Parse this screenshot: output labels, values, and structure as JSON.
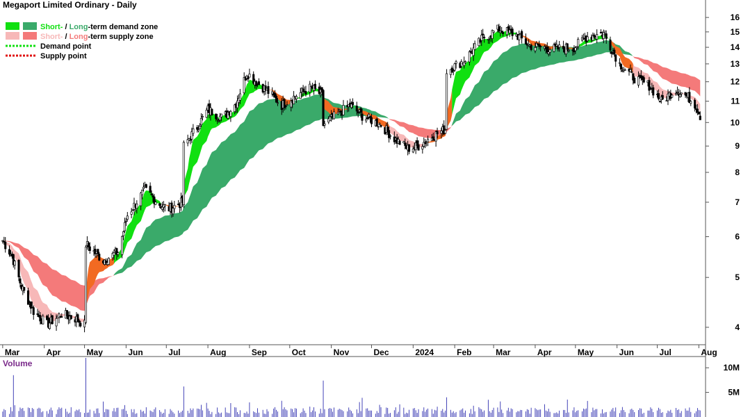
{
  "title": "Megaport Limited Ordinary - Daily",
  "legend": {
    "zone_short": "Short-",
    "zone_sep": " / ",
    "zone_long": "Long",
    "demand_rest": "-term demand zone",
    "supply_rest": "-term supply zone",
    "demand_point": "Demand point",
    "supply_point": "Supply point"
  },
  "colors": {
    "short_demand": "#11e011",
    "long_demand": "#3aaa6a",
    "short_supply": "#f7b8b8",
    "long_supply": "#f47a7a",
    "transition": "#f26a22",
    "candle": "#000000",
    "volume": "#3030b0",
    "volume_label": "#7a2a8a"
  },
  "chart_data": {
    "type": "candlestick",
    "title": "Megaport Limited Ordinary - Daily",
    "y_scale": "log",
    "ylim": [
      3.7,
      17.3
    ],
    "y_ticks": [
      4,
      5,
      6,
      7,
      8,
      9,
      10,
      11,
      12,
      13,
      14,
      15,
      16
    ],
    "x_ticks": [
      "Mar",
      "Apr",
      "May",
      "Jun",
      "Jul",
      "Aug",
      "Sep",
      "Oct",
      "Nov",
      "Dec",
      "2024",
      "Feb",
      "Mar",
      "Apr",
      "May",
      "Jun",
      "Jul",
      "Aug"
    ],
    "price_waypoints": [
      [
        "2023-03-01",
        5.9
      ],
      [
        "2023-03-08",
        5.5
      ],
      [
        "2023-03-15",
        4.8
      ],
      [
        "2023-03-24",
        4.3
      ],
      [
        "2023-04-03",
        4.05
      ],
      [
        "2023-04-14",
        4.25
      ],
      [
        "2023-04-25",
        4.15
      ],
      [
        "2023-05-01",
        4.05
      ],
      [
        "2023-05-02",
        5.8
      ],
      [
        "2023-05-15",
        5.4
      ],
      [
        "2023-05-26",
        5.6
      ],
      [
        "2023-06-02",
        6.6
      ],
      [
        "2023-06-15",
        7.4
      ],
      [
        "2023-06-27",
        6.9
      ],
      [
        "2023-07-03",
        6.8
      ],
      [
        "2023-07-13",
        7.0
      ],
      [
        "2023-07-14",
        9.0
      ],
      [
        "2023-07-24",
        9.8
      ],
      [
        "2023-08-01",
        10.6
      ],
      [
        "2023-08-12",
        10.2
      ],
      [
        "2023-08-22",
        10.9
      ],
      [
        "2023-08-30",
        12.5
      ],
      [
        "2023-09-06",
        12.0
      ],
      [
        "2023-09-13",
        11.6
      ],
      [
        "2023-09-25",
        10.8
      ],
      [
        "2023-10-06",
        11.3
      ],
      [
        "2023-10-17",
        11.7
      ],
      [
        "2023-10-25",
        11.3
      ],
      [
        "2023-10-26",
        9.9
      ],
      [
        "2023-11-06",
        10.4
      ],
      [
        "2023-11-15",
        10.8
      ],
      [
        "2023-11-24",
        10.3
      ],
      [
        "2023-12-08",
        9.9
      ],
      [
        "2023-12-18",
        9.3
      ],
      [
        "2023-12-28",
        8.9
      ],
      [
        "2024-01-05",
        9.0
      ],
      [
        "2024-01-15",
        9.4
      ],
      [
        "2024-01-25",
        9.7
      ],
      [
        "2024-01-26",
        12.6
      ],
      [
        "2024-02-08",
        13.2
      ],
      [
        "2024-02-22",
        14.6
      ],
      [
        "2024-03-05",
        15.2
      ],
      [
        "2024-03-18",
        14.8
      ],
      [
        "2024-03-28",
        14.1
      ],
      [
        "2024-04-15",
        13.9
      ],
      [
        "2024-04-30",
        14.0
      ],
      [
        "2024-05-10",
        14.7
      ],
      [
        "2024-05-22",
        14.9
      ],
      [
        "2024-06-03",
        13.0
      ],
      [
        "2024-06-14",
        12.2
      ],
      [
        "2024-06-25",
        11.8
      ],
      [
        "2024-07-04",
        11.0
      ],
      [
        "2024-07-15",
        11.6
      ],
      [
        "2024-07-24",
        11.2
      ],
      [
        "2024-07-30",
        10.8
      ],
      [
        "2024-08-02",
        10.3
      ]
    ],
    "volume_label": "Volume",
    "volume_ticks": [
      "5M",
      "10M"
    ],
    "volume_ylim": [
      0,
      12000000
    ],
    "volume_spikes": [
      [
        "2023-03-09",
        8500000
      ],
      [
        "2023-05-02",
        12000000
      ],
      [
        "2023-07-14",
        6200000
      ],
      [
        "2023-10-26",
        7400000
      ],
      [
        "2024-01-26",
        4000000
      ],
      [
        "2024-02-26",
        3500000
      ]
    ],
    "zones": [
      {
        "name": "Short-term demand zone",
        "kind": "short_demand"
      },
      {
        "name": "Long-term demand zone",
        "kind": "long_demand"
      },
      {
        "name": "Short-term supply zone",
        "kind": "short_supply"
      },
      {
        "name": "Long-term supply zone",
        "kind": "long_supply"
      }
    ]
  }
}
